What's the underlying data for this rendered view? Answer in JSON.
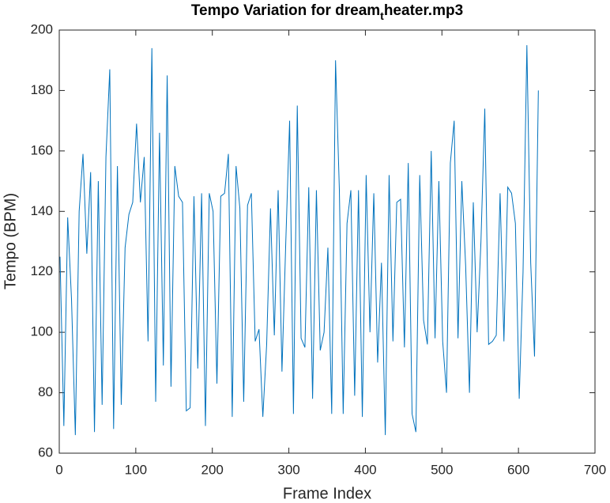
{
  "chart_data": {
    "type": "line",
    "title_parts": [
      "Tempo Variation for dream",
      "t",
      "heater.mp3"
    ],
    "xlabel": "Frame Index",
    "ylabel": "Tempo (BPM)",
    "xlim": [
      0,
      700
    ],
    "xticks": [
      0,
      100,
      200,
      300,
      400,
      500,
      600,
      700
    ],
    "ylim": [
      60,
      200
    ],
    "yticks": [
      60,
      80,
      100,
      120,
      140,
      160,
      180,
      200
    ],
    "series": [
      {
        "color": "#0072bd",
        "x": [
          1,
          6,
          11,
          16,
          21,
          26,
          31,
          36,
          41,
          46,
          51,
          56,
          61,
          66,
          71,
          76,
          81,
          86,
          91,
          96,
          101,
          106,
          111,
          116,
          121,
          126,
          131,
          136,
          141,
          146,
          151,
          156,
          161,
          166,
          171,
          176,
          181,
          186,
          191,
          196,
          201,
          206,
          211,
          216,
          221,
          226,
          231,
          236,
          241,
          246,
          251,
          256,
          261,
          266,
          271,
          276,
          281,
          286,
          291,
          296,
          301,
          306,
          311,
          316,
          321,
          326,
          331,
          336,
          341,
          346,
          351,
          356,
          361,
          366,
          371,
          376,
          381,
          386,
          391,
          396,
          401,
          406,
          411,
          416,
          421,
          426,
          431,
          436,
          441,
          446,
          451,
          456,
          461,
          466,
          471,
          476,
          481,
          486,
          491,
          496,
          501,
          506,
          511,
          516,
          521,
          526,
          531,
          536,
          541,
          546,
          551,
          556,
          561,
          566,
          571,
          576,
          581,
          586,
          591,
          596,
          601,
          606,
          611,
          616,
          621,
          626
        ],
        "values": [
          125,
          69,
          138,
          111,
          66,
          140,
          159,
          126,
          153,
          67,
          150,
          76,
          158,
          187,
          68,
          155,
          76,
          128,
          139,
          143,
          169,
          143,
          158,
          97,
          194,
          77,
          166,
          89,
          185,
          82,
          155,
          145,
          143,
          74,
          75,
          145,
          88,
          146,
          69,
          146,
          140,
          83,
          145,
          146,
          159,
          72,
          155,
          141,
          77,
          142,
          146,
          97,
          101,
          72,
          96,
          141,
          99,
          147,
          87,
          130,
          170,
          73,
          175,
          98,
          95,
          148,
          78,
          147,
          94,
          100,
          128,
          73,
          190,
          147,
          73,
          136,
          147,
          79,
          147,
          72,
          152,
          100,
          146,
          90,
          123,
          66,
          152,
          97,
          143,
          144,
          95,
          156,
          73,
          67,
          152,
          104,
          96,
          160,
          98,
          150,
          97,
          80,
          156,
          170,
          98,
          150,
          122,
          80,
          143,
          100,
          130,
          174,
          96,
          97,
          99,
          146,
          97,
          148,
          146,
          136,
          78,
          120,
          195,
          123,
          92,
          180
        ]
      }
    ]
  }
}
